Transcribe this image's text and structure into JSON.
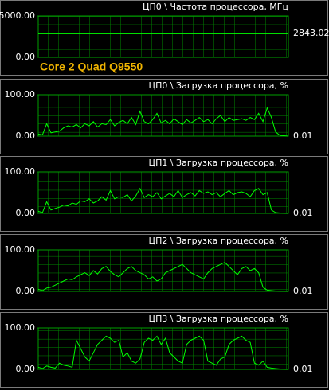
{
  "chart_data": [
    {
      "type": "line",
      "title": "ЦП0 \\ Частота процессора, МГц",
      "annotation": "Core 2 Quad Q9550",
      "color": "#00ff00",
      "ylim": [
        0,
        5000
      ],
      "yticks": [
        {
          "value": 0,
          "label": "0.00"
        },
        {
          "value": 5000,
          "label": "5000.00"
        }
      ],
      "values": [
        2843.02,
        2843.02,
        2843.02,
        2843.02,
        2843.02,
        2843.02,
        2843.02,
        2843.02,
        2843.02,
        2843.02,
        2843.02,
        2843.02,
        2843.02,
        2843.02,
        2843.02,
        2843.02,
        2843.02,
        2843.02,
        2843.02,
        2843.02
      ],
      "last_label": "2843.02"
    },
    {
      "type": "line",
      "title": "ЦП0 \\ Загрузка процессора, %",
      "color": "#00ff00",
      "ylim": [
        0,
        100
      ],
      "yticks": [
        {
          "value": 0,
          "label": "0.00"
        },
        {
          "value": 100,
          "label": "100.00"
        }
      ],
      "values": [
        5,
        3,
        30,
        8,
        10,
        12,
        20,
        25,
        22,
        28,
        20,
        30,
        25,
        35,
        22,
        30,
        28,
        40,
        25,
        33,
        38,
        30,
        45,
        28,
        60,
        35,
        30,
        40,
        55,
        32,
        38,
        30,
        42,
        35,
        28,
        40,
        32,
        38,
        45,
        35,
        40,
        30,
        42,
        50,
        35,
        45,
        38,
        40,
        42,
        38,
        45,
        40,
        55,
        35,
        68,
        45,
        10,
        2,
        1,
        0.01
      ],
      "last_label": "0.01"
    },
    {
      "type": "line",
      "title": "ЦП1 \\ Загрузка процессора, %",
      "color": "#00ff00",
      "ylim": [
        0,
        100
      ],
      "yticks": [
        {
          "value": 0,
          "label": "0.00"
        },
        {
          "value": 100,
          "label": "100.00"
        }
      ],
      "values": [
        5,
        2,
        28,
        8,
        12,
        15,
        20,
        18,
        25,
        22,
        30,
        28,
        35,
        25,
        30,
        40,
        32,
        55,
        35,
        40,
        38,
        45,
        30,
        42,
        60,
        38,
        45,
        40,
        50,
        35,
        42,
        48,
        40,
        55,
        38,
        45,
        50,
        42,
        55,
        48,
        52,
        45,
        50,
        40,
        48,
        55,
        45,
        50,
        52,
        48,
        40,
        55,
        60,
        45,
        50,
        8,
        2,
        1,
        0.5,
        0.01
      ],
      "last_label": "0.01"
    },
    {
      "type": "line",
      "title": "ЦП2 \\ Загрузка процессора, %",
      "color": "#00ff00",
      "ylim": [
        0,
        100
      ],
      "yticks": [
        {
          "value": 0,
          "label": "0.00"
        },
        {
          "value": 100,
          "label": "100.00"
        }
      ],
      "values": [
        5,
        2,
        8,
        10,
        15,
        20,
        25,
        30,
        28,
        35,
        40,
        45,
        38,
        50,
        42,
        55,
        60,
        48,
        40,
        35,
        45,
        55,
        60,
        50,
        45,
        40,
        30,
        35,
        25,
        30,
        45,
        50,
        55,
        60,
        65,
        55,
        45,
        40,
        35,
        30,
        45,
        55,
        60,
        65,
        70,
        60,
        50,
        40,
        55,
        60,
        50,
        55,
        45,
        10,
        3,
        2,
        1,
        0.5,
        0.3,
        0.01
      ],
      "last_label": "0.01"
    },
    {
      "type": "line",
      "title": "ЦП3 \\ Загрузка процессора, %",
      "color": "#00ff00",
      "ylim": [
        0,
        100
      ],
      "yticks": [
        {
          "value": 0,
          "label": "0.00"
        },
        {
          "value": 100,
          "label": "100.00"
        }
      ],
      "values": [
        5,
        2,
        8,
        5,
        3,
        15,
        10,
        8,
        5,
        70,
        50,
        30,
        20,
        40,
        60,
        70,
        80,
        75,
        65,
        70,
        30,
        40,
        20,
        15,
        25,
        65,
        75,
        70,
        80,
        60,
        75,
        40,
        30,
        20,
        15,
        60,
        70,
        75,
        80,
        70,
        20,
        15,
        10,
        25,
        30,
        60,
        70,
        75,
        80,
        70,
        65,
        15,
        10,
        20,
        5,
        3,
        2,
        1,
        0.5,
        0.01
      ],
      "last_label": "0.01"
    }
  ]
}
